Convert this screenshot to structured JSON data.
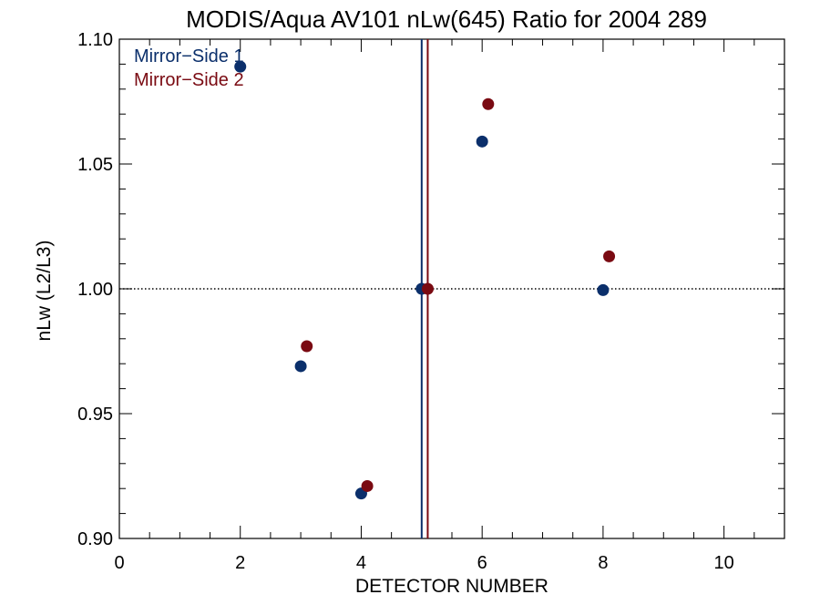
{
  "chart_data": {
    "type": "scatter",
    "title": "MODIS/Aqua AV101 nLw(645) Ratio for 2004 289",
    "xlabel": "DETECTOR NUMBER",
    "ylabel": "nLw (L2/L3)",
    "xlim": [
      0,
      11
    ],
    "ylim": [
      0.9,
      1.1
    ],
    "x_ticks": [
      0,
      2,
      4,
      6,
      8,
      10
    ],
    "x_tick_labels": [
      "0",
      "2",
      "4",
      "6",
      "8",
      "10"
    ],
    "y_ticks": [
      0.9,
      0.95,
      1.0,
      1.05,
      1.1
    ],
    "y_tick_labels": [
      "0.90",
      "0.95",
      "1.00",
      "1.05",
      "1.10"
    ],
    "reference_line_y": 1.0,
    "legend_position": "top-left",
    "series": [
      {
        "name": "Mirror−Side 1",
        "color": "#0b2f6b",
        "x": [
          2,
          3,
          4,
          5,
          6,
          8
        ],
        "y": [
          1.089,
          0.969,
          0.918,
          1.0,
          1.059,
          0.9995
        ],
        "vline_x": 5.0
      },
      {
        "name": "Mirror−Side 2",
        "color": "#7a0a12",
        "x": [
          2.1,
          3.1,
          4.1,
          5.1,
          6.1,
          8.1
        ],
        "y": [
          null,
          0.977,
          0.921,
          1.0,
          1.074,
          1.013
        ],
        "vline_x": 5.1
      }
    ]
  }
}
